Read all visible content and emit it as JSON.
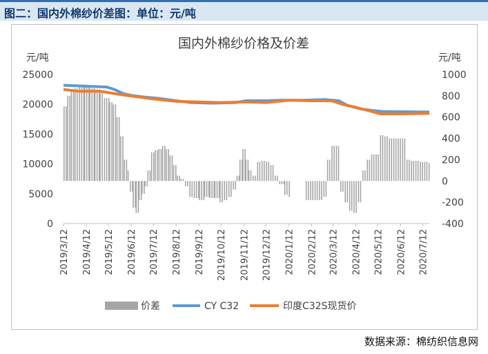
{
  "header": {
    "title": "图二：国内外棉纱价差图：单位：元/吨"
  },
  "footer": {
    "source": "数据来源：棉纺织信息网"
  },
  "colors": {
    "banner_bg": "#d9e6f4",
    "banner_border": "#2f6fb5",
    "bar": "#a6a6a6",
    "cy_line": "#5b9bd5",
    "india_line": "#ed7d31"
  },
  "chart_data": {
    "type": "bar+line",
    "title": "国内外棉纱价格及价差",
    "ylabel_left": "元/吨",
    "ylabel_right": "元/吨",
    "ylim_left": [
      0,
      25000
    ],
    "yticks_left": [
      "0",
      "5000",
      "10000",
      "15000",
      "20000",
      "25000"
    ],
    "ylim_right": [
      -400,
      1000
    ],
    "yticks_right": [
      "-400",
      "-200",
      "0",
      "200",
      "400",
      "600",
      "800",
      "1000"
    ],
    "xlim": [
      "2019-03-12",
      "2020-07-21"
    ],
    "xticks": [
      "2019/3/12",
      "2019/4/12",
      "2019/5/12",
      "2019/6/12",
      "2019/7/12",
      "2019/8/12",
      "2019/9/12",
      "2019/10/12",
      "2019/11/12",
      "2019/12/12",
      "2020/1/12",
      "2020/2/12",
      "2020/3/12",
      "2020/4/12",
      "2020/5/12",
      "2020/6/12",
      "2020/7/12"
    ],
    "grid": false,
    "legend_position": "bottom",
    "series": [
      {
        "name": "价差",
        "type": "bar",
        "axis": "right",
        "points": [
          [
            "2019-03-12",
            700
          ],
          [
            "2019-03-17",
            800
          ],
          [
            "2019-03-22",
            850
          ],
          [
            "2019-03-27",
            870
          ],
          [
            "2019-04-02",
            880
          ],
          [
            "2019-04-09",
            880
          ],
          [
            "2019-04-16",
            870
          ],
          [
            "2019-04-23",
            860
          ],
          [
            "2019-04-30",
            850
          ],
          [
            "2019-05-06",
            780
          ],
          [
            "2019-05-13",
            740
          ],
          [
            "2019-05-18",
            720
          ],
          [
            "2019-05-23",
            600
          ],
          [
            "2019-05-28",
            420
          ],
          [
            "2019-06-02",
            200
          ],
          [
            "2019-06-07",
            100
          ],
          [
            "2019-06-10",
            -100
          ],
          [
            "2019-06-14",
            -250
          ],
          [
            "2019-06-18",
            -300
          ],
          [
            "2019-06-22",
            -180
          ],
          [
            "2019-06-26",
            -120
          ],
          [
            "2019-06-30",
            -50
          ],
          [
            "2019-07-04",
            100
          ],
          [
            "2019-07-09",
            270
          ],
          [
            "2019-07-14",
            290
          ],
          [
            "2019-07-19",
            300
          ],
          [
            "2019-07-24",
            330
          ],
          [
            "2019-07-29",
            300
          ],
          [
            "2019-08-03",
            240
          ],
          [
            "2019-08-08",
            150
          ],
          [
            "2019-08-13",
            50
          ],
          [
            "2019-08-18",
            20
          ],
          [
            "2019-08-24",
            -50
          ],
          [
            "2019-08-30",
            -150
          ],
          [
            "2019-09-05",
            -160
          ],
          [
            "2019-09-12",
            -180
          ],
          [
            "2019-09-19",
            -150
          ],
          [
            "2019-09-26",
            -160
          ],
          [
            "2019-10-03",
            -160
          ],
          [
            "2019-10-10",
            -200
          ],
          [
            "2019-10-16",
            -180
          ],
          [
            "2019-10-22",
            -150
          ],
          [
            "2019-10-28",
            -80
          ],
          [
            "2019-11-02",
            50
          ],
          [
            "2019-11-06",
            200
          ],
          [
            "2019-11-10",
            300
          ],
          [
            "2019-11-14",
            200
          ],
          [
            "2019-11-18",
            100
          ],
          [
            "2019-11-24",
            50
          ],
          [
            "2019-11-30",
            180
          ],
          [
            "2019-12-06",
            190
          ],
          [
            "2019-12-12",
            180
          ],
          [
            "2019-12-18",
            150
          ],
          [
            "2019-12-24",
            50
          ],
          [
            "2019-12-30",
            -30
          ],
          [
            "2020-01-06",
            -130
          ],
          [
            "2020-01-12",
            -150
          ],
          [
            "2020-02-04",
            -180
          ],
          [
            "2020-02-10",
            -180
          ],
          [
            "2020-02-16",
            -180
          ],
          [
            "2020-02-22",
            -180
          ],
          [
            "2020-02-28",
            -150
          ],
          [
            "2020-03-04",
            200
          ],
          [
            "2020-03-10",
            330
          ],
          [
            "2020-03-16",
            330
          ],
          [
            "2020-03-22",
            -100
          ],
          [
            "2020-03-28",
            -200
          ],
          [
            "2020-04-03",
            -280
          ],
          [
            "2020-04-09",
            -300
          ],
          [
            "2020-04-15",
            -200
          ],
          [
            "2020-04-21",
            100
          ],
          [
            "2020-04-27",
            200
          ],
          [
            "2020-05-03",
            250
          ],
          [
            "2020-05-09",
            250
          ],
          [
            "2020-05-15",
            430
          ],
          [
            "2020-05-21",
            420
          ],
          [
            "2020-05-27",
            400
          ],
          [
            "2020-06-02",
            400
          ],
          [
            "2020-06-08",
            400
          ],
          [
            "2020-06-14",
            400
          ],
          [
            "2020-06-20",
            200
          ],
          [
            "2020-06-26",
            190
          ],
          [
            "2020-07-02",
            190
          ],
          [
            "2020-07-08",
            180
          ],
          [
            "2020-07-14",
            180
          ],
          [
            "2020-07-20",
            170
          ]
        ]
      },
      {
        "name": "CY C32",
        "type": "line",
        "axis": "left",
        "points": [
          [
            "2019-03-12",
            23200
          ],
          [
            "2019-04-01",
            23100
          ],
          [
            "2019-04-20",
            23000
          ],
          [
            "2019-05-10",
            22900
          ],
          [
            "2019-05-20",
            22500
          ],
          [
            "2019-06-01",
            21800
          ],
          [
            "2019-06-12",
            21500
          ],
          [
            "2019-07-01",
            21200
          ],
          [
            "2019-07-20",
            21000
          ],
          [
            "2019-08-12",
            20600
          ],
          [
            "2019-09-01",
            20300
          ],
          [
            "2019-10-01",
            20200
          ],
          [
            "2019-11-01",
            20300
          ],
          [
            "2019-11-15",
            20600
          ],
          [
            "2019-12-12",
            20600
          ],
          [
            "2020-01-01",
            20700
          ],
          [
            "2020-02-01",
            20700
          ],
          [
            "2020-03-01",
            20800
          ],
          [
            "2020-03-20",
            20600
          ],
          [
            "2020-04-01",
            19800
          ],
          [
            "2020-04-20",
            19200
          ],
          [
            "2020-05-10",
            18900
          ],
          [
            "2020-05-20",
            18800
          ],
          [
            "2020-07-21",
            18700
          ]
        ]
      },
      {
        "name": "印度C32S现货价",
        "type": "line",
        "axis": "left",
        "points": [
          [
            "2019-03-12",
            22500
          ],
          [
            "2019-04-01",
            22200
          ],
          [
            "2019-05-01",
            22200
          ],
          [
            "2019-05-25",
            21700
          ],
          [
            "2019-06-12",
            21400
          ],
          [
            "2019-07-12",
            20900
          ],
          [
            "2019-08-12",
            20500
          ],
          [
            "2019-09-12",
            20400
          ],
          [
            "2019-10-12",
            20300
          ],
          [
            "2019-11-12",
            20400
          ],
          [
            "2019-12-12",
            20300
          ],
          [
            "2020-01-12",
            20700
          ],
          [
            "2020-02-12",
            20600
          ],
          [
            "2020-03-10",
            20600
          ],
          [
            "2020-03-25",
            20000
          ],
          [
            "2020-04-12",
            19500
          ],
          [
            "2020-05-01",
            18900
          ],
          [
            "2020-05-15",
            18400
          ],
          [
            "2020-06-12",
            18400
          ],
          [
            "2020-07-21",
            18500
          ]
        ]
      }
    ]
  }
}
